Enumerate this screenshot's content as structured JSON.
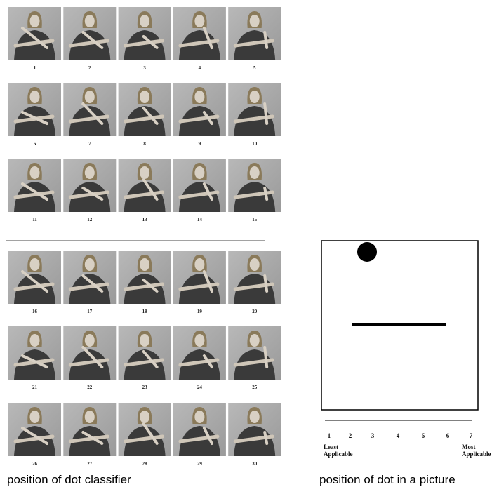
{
  "figure": {
    "frames": [
      "1",
      "2",
      "3",
      "4",
      "5",
      "6",
      "7",
      "8",
      "9",
      "10",
      "11",
      "12",
      "13",
      "14",
      "15",
      "16",
      "17",
      "18",
      "19",
      "20",
      "21",
      "22",
      "23",
      "24",
      "25",
      "26",
      "27",
      "28",
      "29",
      "30"
    ],
    "caption": "position of dot classifier"
  },
  "picture": {
    "scale_points": [
      "1",
      "2",
      "3",
      "4",
      "5",
      "6",
      "7"
    ],
    "low_label": [
      "Least",
      "Applicable"
    ],
    "high_label": [
      "Most",
      "Applicable"
    ],
    "caption": "position of dot in a picture"
  }
}
